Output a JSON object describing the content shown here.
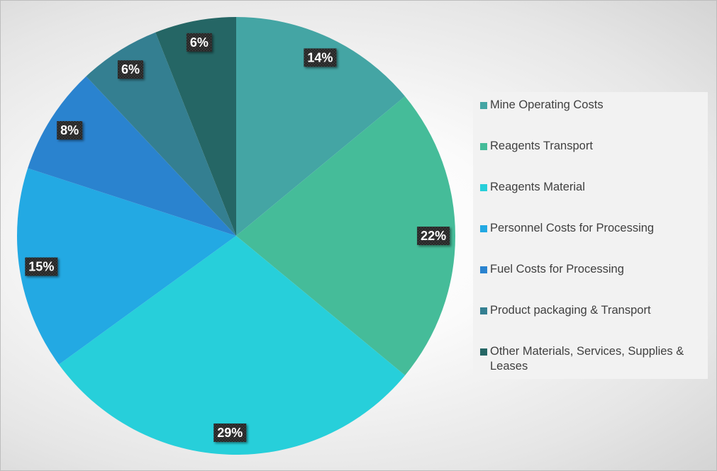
{
  "chart_data": {
    "type": "pie",
    "title": "",
    "start_angle_deg": 0,
    "direction": "clockwise",
    "legend_position": "right",
    "slices": [
      {
        "label": "Mine Operating Costs",
        "value": 14,
        "value_label": "14%",
        "color": "#44A5A4"
      },
      {
        "label": "Reagents Transport",
        "value": 22,
        "value_label": "22%",
        "color": "#45BC99"
      },
      {
        "label": "Reagents Material",
        "value": 29,
        "value_label": "29%",
        "color": "#27CFDA"
      },
      {
        "label": "Personnel Costs for Processing",
        "value": 15,
        "value_label": "15%",
        "color": "#23A9E3"
      },
      {
        "label": "Fuel Costs for Processing",
        "value": 8,
        "value_label": "8%",
        "color": "#2A83CF"
      },
      {
        "label": "Product packaging & Transport",
        "value": 6,
        "value_label": "6%",
        "color": "#347F91"
      },
      {
        "label": "Other Materials, Services, Supplies & Leases",
        "value": 6,
        "value_label": "6%",
        "color": "#256665"
      }
    ]
  }
}
